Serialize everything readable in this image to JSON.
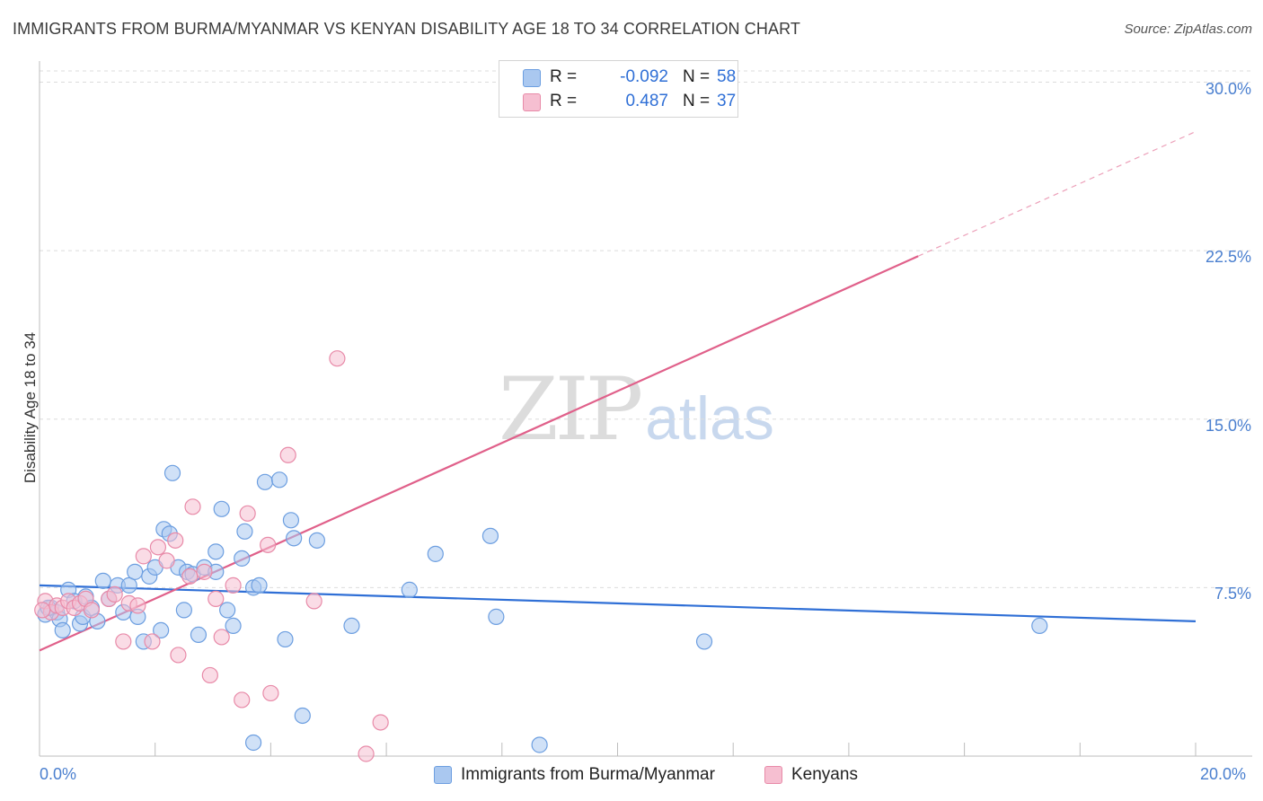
{
  "header": {
    "title": "IMMIGRANTS FROM BURMA/MYANMAR VS KENYAN DISABILITY AGE 18 TO 34 CORRELATION CHART",
    "source": "Source: ZipAtlas.com"
  },
  "watermark": {
    "zip": "ZIP",
    "atlas": "atlas"
  },
  "colors": {
    "blue_fill": "#aac8f0",
    "blue_stroke": "#6c9ee0",
    "blue_line": "#2f6fd6",
    "pink_fill": "#f6bfd1",
    "pink_stroke": "#e88aa8",
    "pink_line": "#e0608a",
    "grid": "#d8d8d8",
    "tick_text": "#4a7fcf"
  },
  "legend": {
    "rows": [
      {
        "r_label": "R =",
        "r_value": "-0.092",
        "n_label": "N =",
        "n_value": "58"
      },
      {
        "r_label": "R =",
        "r_value": "0.487",
        "n_label": "N =",
        "n_value": "37"
      }
    ]
  },
  "bottom_legend": {
    "blue_label": "Immigrants from Burma/Myanmar",
    "pink_label": "Kenyans"
  },
  "chart_data": {
    "type": "scatter",
    "title": "IMMIGRANTS FROM BURMA/MYANMAR VS KENYAN DISABILITY AGE 18 TO 34 CORRELATION CHART",
    "xlabel": "",
    "ylabel": "Disability Age 18 to 34",
    "xlim": [
      0,
      20
    ],
    "ylim": [
      0,
      30.5
    ],
    "x_tick_labels": [
      "0.0%",
      "20.0%"
    ],
    "y_ticks": [
      7.5,
      15.0,
      22.5,
      30.0
    ],
    "y_tick_labels": [
      "7.5%",
      "15.0%",
      "22.5%",
      "30.0%"
    ],
    "grid": true,
    "legend_position": "top-center",
    "series": [
      {
        "name": "Immigrants from Burma/Myanmar",
        "color": "#6c9ee0",
        "r": -0.092,
        "n": 58,
        "trend": {
          "x0": 0.0,
          "y0": 7.6,
          "x1": 20.0,
          "y1": 6.0,
          "x_solid_end": 20.0
        },
        "points": [
          [
            0.1,
            6.3
          ],
          [
            0.2,
            6.6
          ],
          [
            0.3,
            6.4
          ],
          [
            0.35,
            6.1
          ],
          [
            0.4,
            5.6
          ],
          [
            0.5,
            7.4
          ],
          [
            0.6,
            6.9
          ],
          [
            0.7,
            5.9
          ],
          [
            0.75,
            6.2
          ],
          [
            0.8,
            7.1
          ],
          [
            0.9,
            6.6
          ],
          [
            1.0,
            6.0
          ],
          [
            1.1,
            7.8
          ],
          [
            1.2,
            7.0
          ],
          [
            1.35,
            7.6
          ],
          [
            1.45,
            6.4
          ],
          [
            1.55,
            7.6
          ],
          [
            1.65,
            8.2
          ],
          [
            1.7,
            6.2
          ],
          [
            1.8,
            5.1
          ],
          [
            1.9,
            8.0
          ],
          [
            2.0,
            8.4
          ],
          [
            2.1,
            5.6
          ],
          [
            2.15,
            10.1
          ],
          [
            2.3,
            12.6
          ],
          [
            2.25,
            9.9
          ],
          [
            2.4,
            8.4
          ],
          [
            2.5,
            6.5
          ],
          [
            2.55,
            8.2
          ],
          [
            2.65,
            8.1
          ],
          [
            2.75,
            5.4
          ],
          [
            2.85,
            8.4
          ],
          [
            3.05,
            9.1
          ],
          [
            3.05,
            8.2
          ],
          [
            3.15,
            11.0
          ],
          [
            3.25,
            6.5
          ],
          [
            3.35,
            5.8
          ],
          [
            3.5,
            8.8
          ],
          [
            3.55,
            10.0
          ],
          [
            3.7,
            0.6
          ],
          [
            3.7,
            7.5
          ],
          [
            3.8,
            7.6
          ],
          [
            3.9,
            12.2
          ],
          [
            4.15,
            12.3
          ],
          [
            4.25,
            5.2
          ],
          [
            4.35,
            10.5
          ],
          [
            4.4,
            9.7
          ],
          [
            4.55,
            1.8
          ],
          [
            4.8,
            9.6
          ],
          [
            5.4,
            5.8
          ],
          [
            6.4,
            7.4
          ],
          [
            6.85,
            9.0
          ],
          [
            7.8,
            9.8
          ],
          [
            7.9,
            6.2
          ],
          [
            8.65,
            0.5
          ],
          [
            11.5,
            5.1
          ],
          [
            17.3,
            5.8
          ],
          [
            0.15,
            6.6
          ]
        ]
      },
      {
        "name": "Kenyans",
        "color": "#e88aa8",
        "r": 0.487,
        "n": 37,
        "trend": {
          "x0": 0.0,
          "y0": 4.7,
          "x1": 20.0,
          "y1": 27.8,
          "x_solid_end": 15.2
        },
        "points": [
          [
            0.1,
            6.9
          ],
          [
            0.2,
            6.4
          ],
          [
            0.3,
            6.7
          ],
          [
            0.4,
            6.6
          ],
          [
            0.5,
            6.9
          ],
          [
            0.6,
            6.6
          ],
          [
            0.7,
            6.8
          ],
          [
            0.8,
            7.0
          ],
          [
            0.9,
            6.5
          ],
          [
            1.2,
            7.0
          ],
          [
            1.3,
            7.2
          ],
          [
            1.45,
            5.1
          ],
          [
            1.55,
            6.8
          ],
          [
            1.7,
            6.7
          ],
          [
            1.8,
            8.9
          ],
          [
            1.95,
            5.1
          ],
          [
            2.05,
            9.3
          ],
          [
            2.2,
            8.7
          ],
          [
            2.35,
            9.6
          ],
          [
            2.4,
            4.5
          ],
          [
            2.6,
            8.0
          ],
          [
            2.65,
            11.1
          ],
          [
            2.85,
            8.2
          ],
          [
            2.95,
            3.6
          ],
          [
            3.05,
            7.0
          ],
          [
            3.15,
            5.3
          ],
          [
            3.35,
            7.6
          ],
          [
            3.5,
            2.5
          ],
          [
            3.6,
            10.8
          ],
          [
            3.95,
            9.4
          ],
          [
            4.0,
            2.8
          ],
          [
            4.3,
            13.4
          ],
          [
            4.75,
            6.9
          ],
          [
            5.15,
            17.7
          ],
          [
            5.65,
            0.1
          ],
          [
            5.9,
            1.5
          ],
          [
            0.05,
            6.5
          ]
        ]
      }
    ]
  }
}
